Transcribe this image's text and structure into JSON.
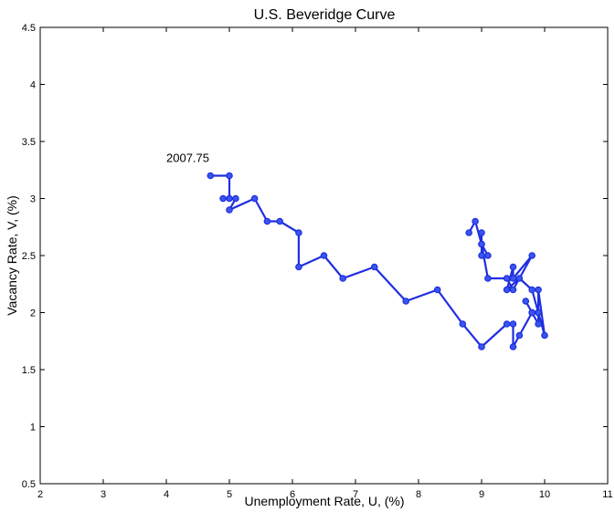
{
  "chart_data": {
    "type": "line",
    "title": "U.S. Beveridge Curve",
    "xlabel": "Unemployment Rate, U, (%)",
    "ylabel": "Vacancy Rate, V, (%)",
    "xlim": [
      2,
      11
    ],
    "ylim": [
      0.5,
      4.5
    ],
    "xticks": [
      "2",
      "3",
      "4",
      "5",
      "6",
      "7",
      "8",
      "9",
      "10",
      "11"
    ],
    "yticks": [
      "0.5",
      "1",
      "1.5",
      "2",
      "2.5",
      "3",
      "3.5",
      "4",
      "4.5"
    ],
    "grid": false,
    "legend": "none",
    "series": [
      {
        "color": "#1f2fe0",
        "marker": "circle",
        "x": [
          4.7,
          5.0,
          5.0,
          4.9,
          5.1,
          5.0,
          5.4,
          5.6,
          5.8,
          6.1,
          6.1,
          6.5,
          6.8,
          7.3,
          7.8,
          8.3,
          8.7,
          9.0,
          9.4,
          9.5,
          9.5,
          9.6,
          9.8,
          9.9,
          9.9,
          9.8,
          9.7,
          9.8,
          9.9,
          10.0,
          9.9,
          9.9,
          9.8,
          9.6,
          9.4,
          9.5,
          9.5,
          9.8,
          9.5,
          9.4,
          9.1,
          9.0,
          9.1,
          9.0,
          9.0,
          9.0,
          8.9,
          8.8
        ],
        "y": [
          3.2,
          3.2,
          3.0,
          3.0,
          3.0,
          2.9,
          3.0,
          2.8,
          2.8,
          2.7,
          2.4,
          2.5,
          2.3,
          2.4,
          2.1,
          2.2,
          1.9,
          1.7,
          1.9,
          1.9,
          1.7,
          1.8,
          2.0,
          2.0,
          1.9,
          2.0,
          2.1,
          2.0,
          2.0,
          1.8,
          2.2,
          2.0,
          2.2,
          2.3,
          2.2,
          2.4,
          2.3,
          2.5,
          2.2,
          2.3,
          2.3,
          2.6,
          2.5,
          2.5,
          2.7,
          2.6,
          2.8,
          2.7
        ]
      }
    ],
    "annotations": [
      {
        "text": "2007.75",
        "x": 4.0,
        "y": 3.32
      }
    ]
  }
}
